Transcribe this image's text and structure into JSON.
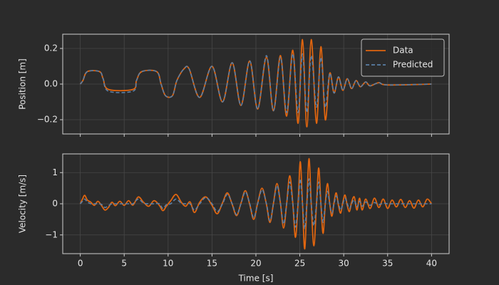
{
  "chart_data": [
    {
      "type": "line",
      "ylabel": "Position [m]",
      "legend": "upper right",
      "grid": true,
      "show_xtick_labels": false,
      "x": [
        0,
        0.3,
        0.8,
        2.2,
        2.6,
        3.2,
        6.0,
        6.4,
        7.0,
        8.7,
        9.2,
        9.7,
        10.5,
        11.0,
        11.8,
        12.4,
        13.6,
        15.0,
        16.2,
        17.3,
        18.3,
        19.3,
        20.2,
        21.2,
        22.0,
        22.8,
        23.5,
        24.2,
        24.8,
        25.3,
        25.8,
        26.3,
        26.9,
        27.4,
        27.9,
        28.4,
        28.9,
        29.4,
        29.9,
        30.4,
        30.9,
        31.4,
        31.9,
        32.5,
        33,
        34,
        35,
        40
      ],
      "series": [
        {
          "name": "Data",
          "color": "#e0650f",
          "dashed": false,
          "values": [
            0,
            0.02,
            0.07,
            0.07,
            0.03,
            -0.03,
            -0.03,
            0.02,
            0.07,
            0.07,
            0,
            -0.065,
            -0.065,
            0.02,
            0.085,
            0.085,
            -0.075,
            0.1,
            -0.1,
            0.12,
            -0.12,
            0.13,
            -0.14,
            0.15,
            -0.15,
            0.16,
            -0.18,
            0.19,
            -0.22,
            0.25,
            -0.24,
            0.25,
            -0.22,
            0.21,
            -0.2,
            0.06,
            -0.05,
            0.04,
            -0.035,
            0.03,
            -0.025,
            0.02,
            -0.015,
            0.012,
            -0.01,
            0.008,
            -0.005,
            0
          ]
        },
        {
          "name": "Predicted",
          "color": "#5b7fa6",
          "dashed": true,
          "values": [
            0,
            0.02,
            0.07,
            0.07,
            0.03,
            -0.04,
            -0.04,
            0.02,
            0.07,
            0.07,
            0,
            -0.065,
            -0.065,
            0.02,
            0.085,
            0.085,
            -0.075,
            0.1,
            -0.1,
            0.12,
            -0.12,
            0.13,
            -0.14,
            0.16,
            -0.15,
            0.15,
            -0.16,
            0.17,
            -0.16,
            0.17,
            -0.16,
            0.16,
            -0.13,
            0.15,
            -0.13,
            0.06,
            -0.05,
            0.04,
            -0.035,
            0.03,
            -0.025,
            0.02,
            -0.015,
            0.012,
            -0.01,
            0.008,
            -0.005,
            0
          ]
        }
      ],
      "xlim": [
        -2,
        42
      ],
      "xticks": [
        0,
        5,
        10,
        15,
        20,
        25,
        30,
        35,
        40
      ],
      "ylim": [
        -0.28,
        0.28
      ],
      "yticks": [
        {
          "value": -0.2,
          "label": "−0.2"
        },
        {
          "value": 0,
          "label": "0.0"
        },
        0.2
      ]
    },
    {
      "type": "line",
      "ylabel": "Velocity [m/s]",
      "xlabel": "Time [s]",
      "grid": true,
      "show_xtick_labels": true,
      "x": [
        0,
        0.25,
        0.5,
        0.8,
        1.2,
        1.6,
        2.0,
        2.4,
        2.8,
        3.2,
        3.6,
        4.0,
        4.5,
        5.0,
        5.5,
        6.0,
        6.6,
        7.2,
        7.8,
        8.4,
        9.0,
        9.4,
        9.8,
        10.3,
        10.9,
        11.5,
        12.0,
        12.5,
        13.0,
        13.6,
        14.3,
        15.0,
        15.6,
        16.2,
        16.75,
        17.3,
        17.8,
        18.3,
        18.8,
        19.3,
        19.75,
        20.2,
        20.7,
        21.2,
        21.6,
        22.0,
        22.4,
        22.8,
        23.15,
        23.5,
        23.85,
        24.2,
        24.5,
        24.8,
        25.05,
        25.3,
        25.55,
        25.8,
        26.05,
        26.3,
        26.6,
        26.9,
        27.15,
        27.4,
        27.65,
        27.9,
        28.15,
        28.4,
        28.65,
        28.9,
        29.15,
        29.4,
        29.65,
        29.9,
        30.15,
        30.4,
        30.65,
        30.9,
        31.2,
        31.5,
        31.8,
        32.1,
        32.5,
        33,
        33.5,
        34,
        34.5,
        35,
        35.5,
        36,
        36.5,
        37,
        37.5,
        38,
        38.5,
        39,
        39.5,
        40
      ],
      "series": [
        {
          "color": "#e0650f",
          "dashed": false,
          "values": [
            0,
            0.15,
            0.27,
            0.12,
            0.05,
            -0.05,
            0.08,
            -0.05,
            -0.2,
            -0.12,
            0.05,
            -0.06,
            0.08,
            -0.05,
            0.1,
            -0.04,
            0.22,
            0.05,
            -0.08,
            0.1,
            -0.05,
            -0.22,
            -0.08,
            0.1,
            0.3,
            0.05,
            -0.08,
            0.06,
            -0.28,
            0.05,
            0.22,
            -0.05,
            -0.32,
            0.03,
            0.35,
            -0.02,
            -0.38,
            0.02,
            0.42,
            -0.03,
            -0.5,
            0.02,
            0.5,
            -0.02,
            -0.6,
            0.02,
            0.65,
            0,
            -0.78,
            0,
            0.9,
            0.02,
            -1.08,
            0,
            1.35,
            0.02,
            -1.45,
            0,
            1.45,
            0,
            -1.35,
            0,
            1.15,
            0,
            -0.95,
            0,
            0.65,
            0.02,
            -0.4,
            0.05,
            0.35,
            -0.05,
            -0.3,
            0.05,
            0.28,
            -0.05,
            -0.25,
            0.05,
            0.22,
            -0.2,
            0.18,
            -0.2,
            0.15,
            -0.15,
            0.18,
            -0.12,
            0.15,
            -0.15,
            0.12,
            -0.1,
            0.14,
            -0.12,
            0.1,
            -0.14,
            0.12,
            -0.1,
            0.15,
            0
          ]
        },
        {
          "color": "#5b7fa6",
          "dashed": true,
          "values": [
            0,
            0.08,
            0.15,
            0.06,
            0,
            0,
            0,
            -0.02,
            -0.12,
            -0.06,
            0,
            0,
            0,
            0,
            0,
            0,
            0.15,
            0.02,
            0,
            0,
            0,
            -0.15,
            -0.03,
            0,
            0.15,
            0.02,
            0,
            0,
            -0.2,
            0,
            0.2,
            0,
            -0.25,
            0,
            0.3,
            0,
            -0.35,
            0,
            0.38,
            0,
            -0.45,
            0,
            0.45,
            0,
            -0.55,
            0,
            0.58,
            0,
            -0.65,
            0,
            0.7,
            0,
            -0.75,
            0,
            0.8,
            0,
            -0.8,
            0,
            0.8,
            0,
            -0.7,
            0,
            0.7,
            0,
            -0.6,
            0,
            0.4,
            0,
            -0.3,
            0,
            0.25,
            0,
            -0.2,
            0,
            0.18,
            0,
            -0.15,
            0,
            0.12,
            -0.1,
            0.08,
            -0.08,
            0.06,
            -0.05,
            0.04,
            -0.03,
            0.02,
            0,
            0,
            0,
            0,
            0,
            0,
            0,
            0,
            0,
            0,
            0
          ]
        }
      ],
      "xlim": [
        -2,
        42
      ],
      "xticks": [
        0,
        5,
        10,
        15,
        20,
        25,
        30,
        35,
        40
      ],
      "ylim": [
        -1.6,
        1.6
      ],
      "yticks": [
        {
          "value": -1,
          "label": "−1"
        },
        0,
        1
      ]
    }
  ]
}
